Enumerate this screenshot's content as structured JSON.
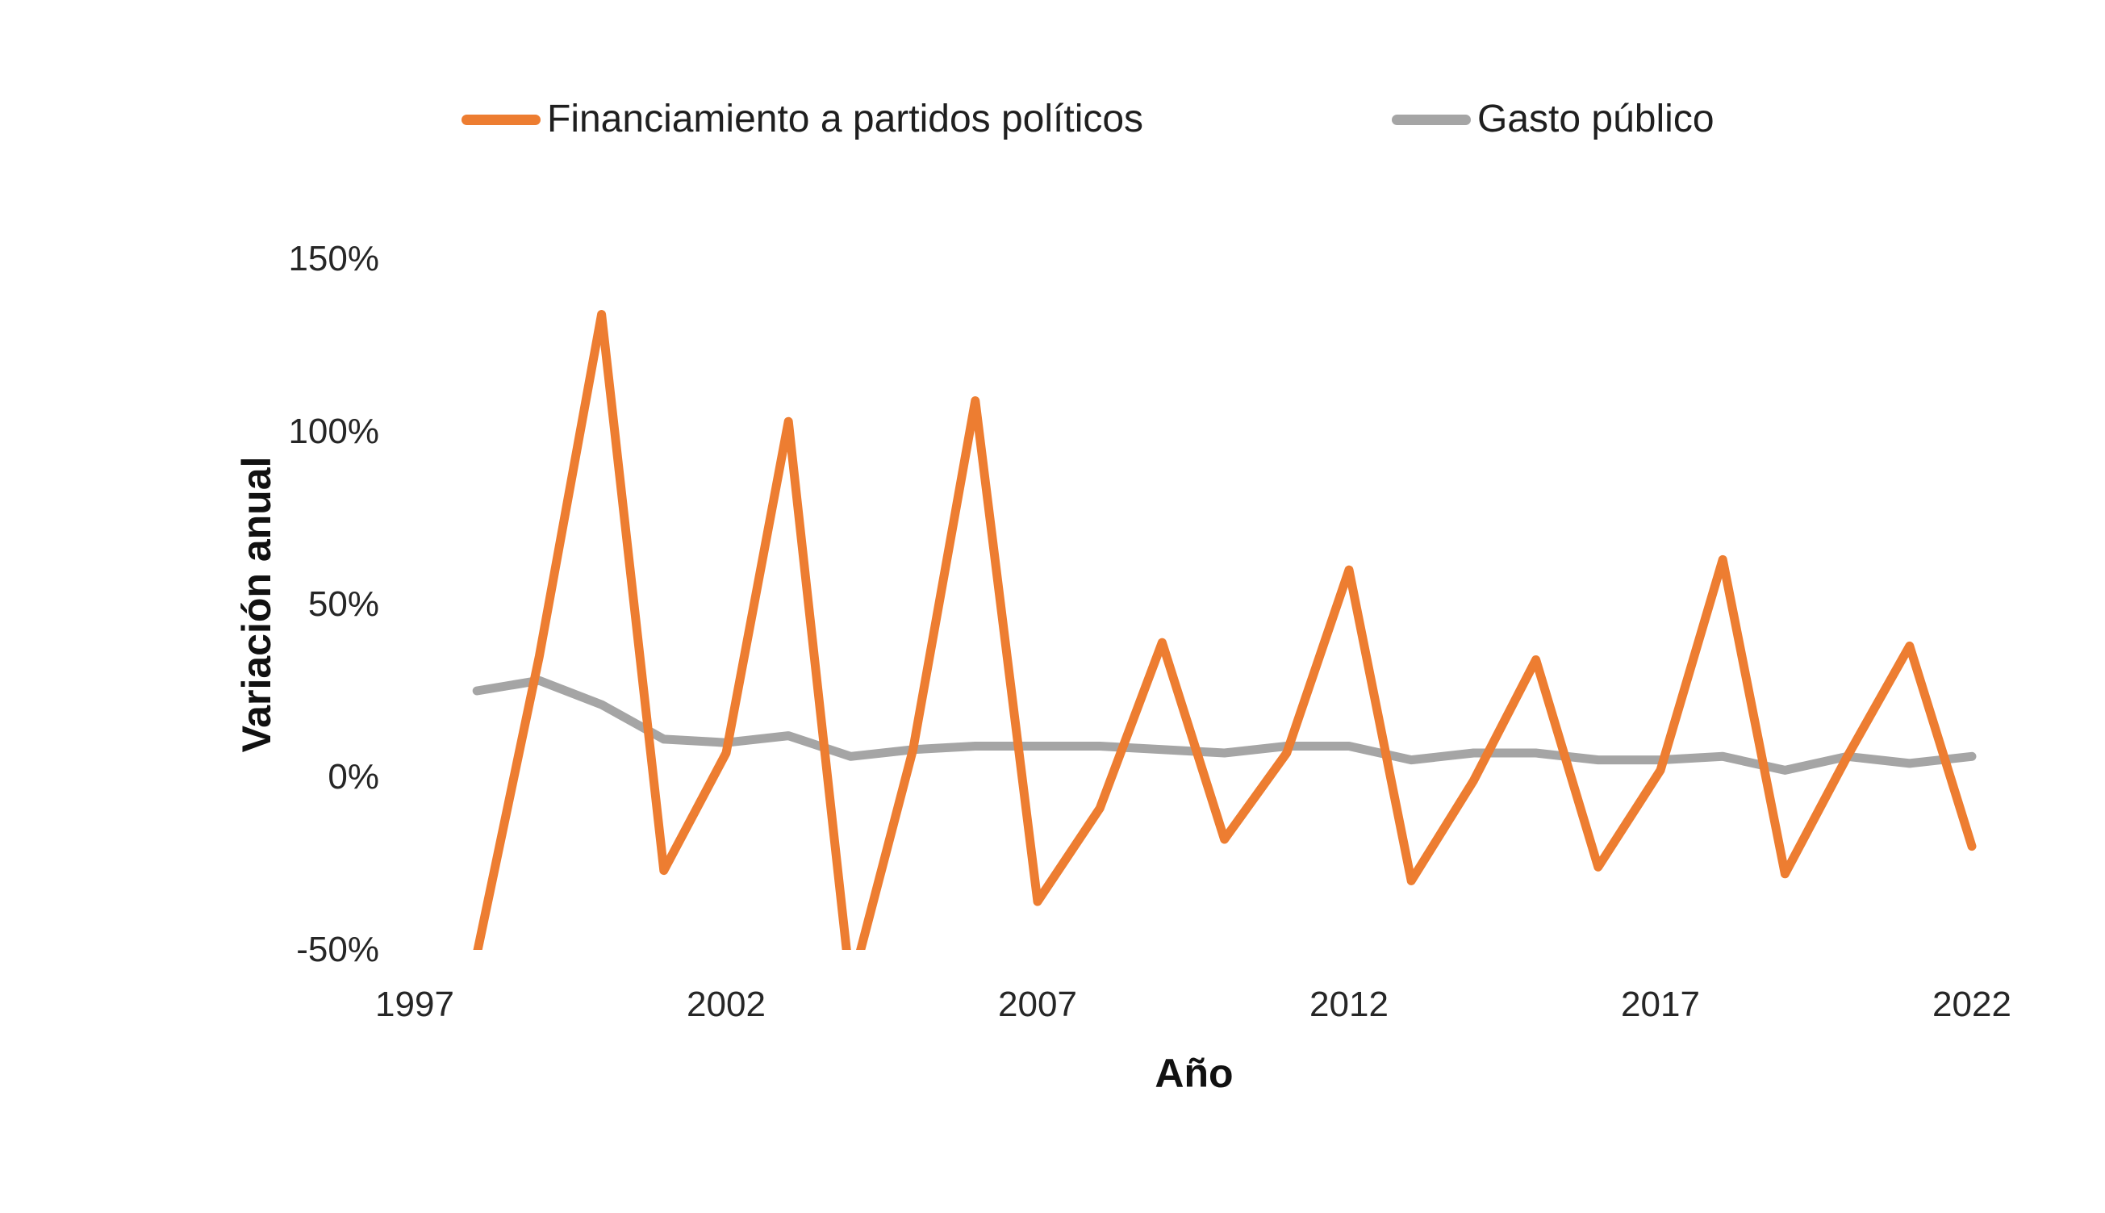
{
  "legend": [
    {
      "label": "Financiamiento a partidos políticos",
      "color": "#ED7D31"
    },
    {
      "label": "Gasto público",
      "color": "#A5A5A5"
    }
  ],
  "chart_data": {
    "type": "line",
    "title": "",
    "xlabel": "Año",
    "ylabel": "Variación anual",
    "x_ticks": [
      "1997",
      "2002",
      "2007",
      "2012",
      "2017",
      "2022"
    ],
    "y_ticks": [
      "150%",
      "100%",
      "50%",
      "0%",
      "-50%"
    ],
    "ylim": [
      -50,
      150
    ],
    "xlim": [
      1997,
      2022.5
    ],
    "grid": false,
    "legend_position": "top",
    "y_unit": "percent",
    "x": [
      1998,
      1999,
      2000,
      2001,
      2002,
      2003,
      2004,
      2005,
      2006,
      2007,
      2008,
      2009,
      2010,
      2011,
      2012,
      2013,
      2014,
      2015,
      2016,
      2017,
      2018,
      2019,
      2020,
      2021,
      2022
    ],
    "series": [
      {
        "name": "Financiamiento a partidos políticos",
        "color": "#ED7D31",
        "values": [
          -51,
          35,
          134,
          -27,
          7,
          103,
          -61,
          8,
          109,
          -36,
          -9,
          39,
          -18,
          7,
          60,
          -30,
          -1,
          34,
          -26,
          2,
          63,
          -28,
          6,
          38,
          -20
        ]
      },
      {
        "name": "Gasto público",
        "color": "#A5A5A5",
        "values": [
          25,
          28,
          21,
          11,
          10,
          12,
          6,
          8,
          9,
          9,
          9,
          8,
          7,
          9,
          9,
          5,
          7,
          7,
          5,
          5,
          6,
          2,
          6,
          4,
          6
        ]
      }
    ]
  }
}
